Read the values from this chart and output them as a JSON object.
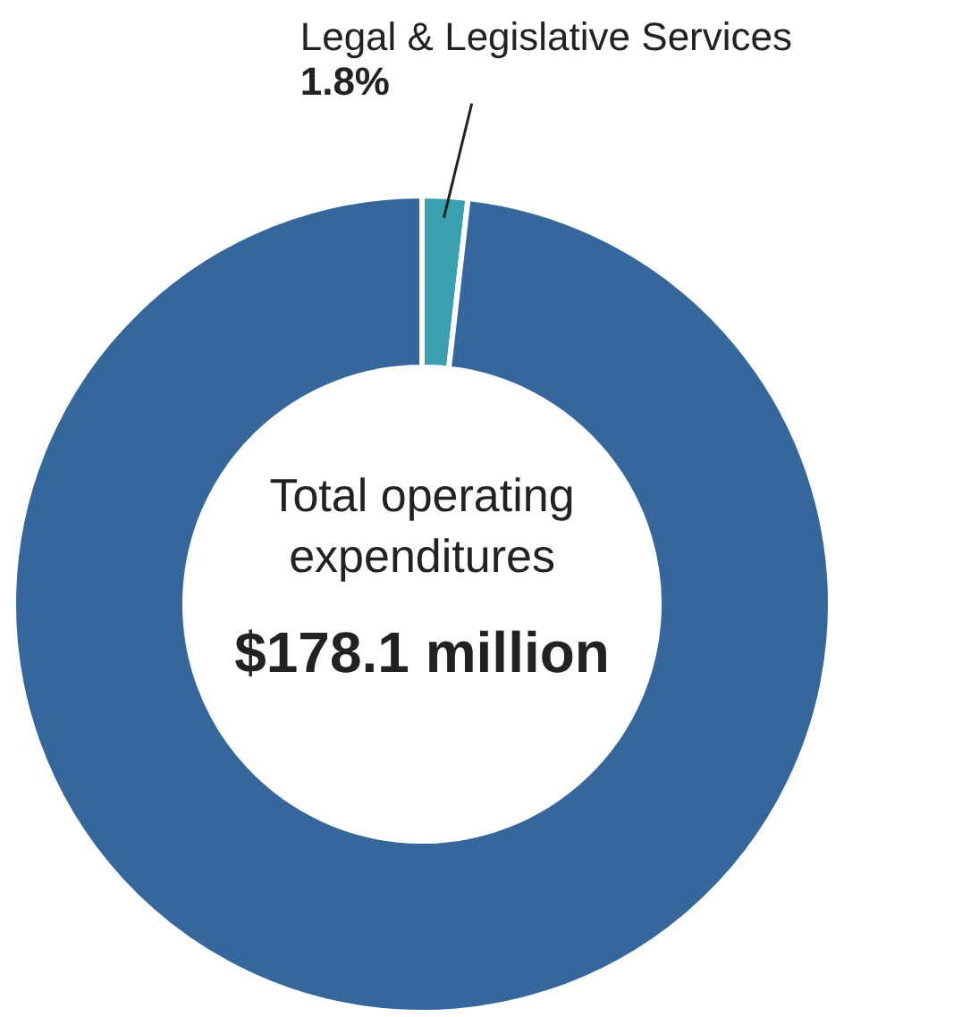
{
  "chart_data": {
    "type": "donut",
    "categories": [
      "Legal & Legislative Services",
      null
    ],
    "values": [
      1.8,
      98.2
    ],
    "value_labels": [
      "1.8%",
      null
    ],
    "colors": [
      "#3a9fae",
      "#35679d"
    ],
    "annotations": [
      "Total operating expenditures",
      "$178.1 million"
    ],
    "legend": false
  }
}
